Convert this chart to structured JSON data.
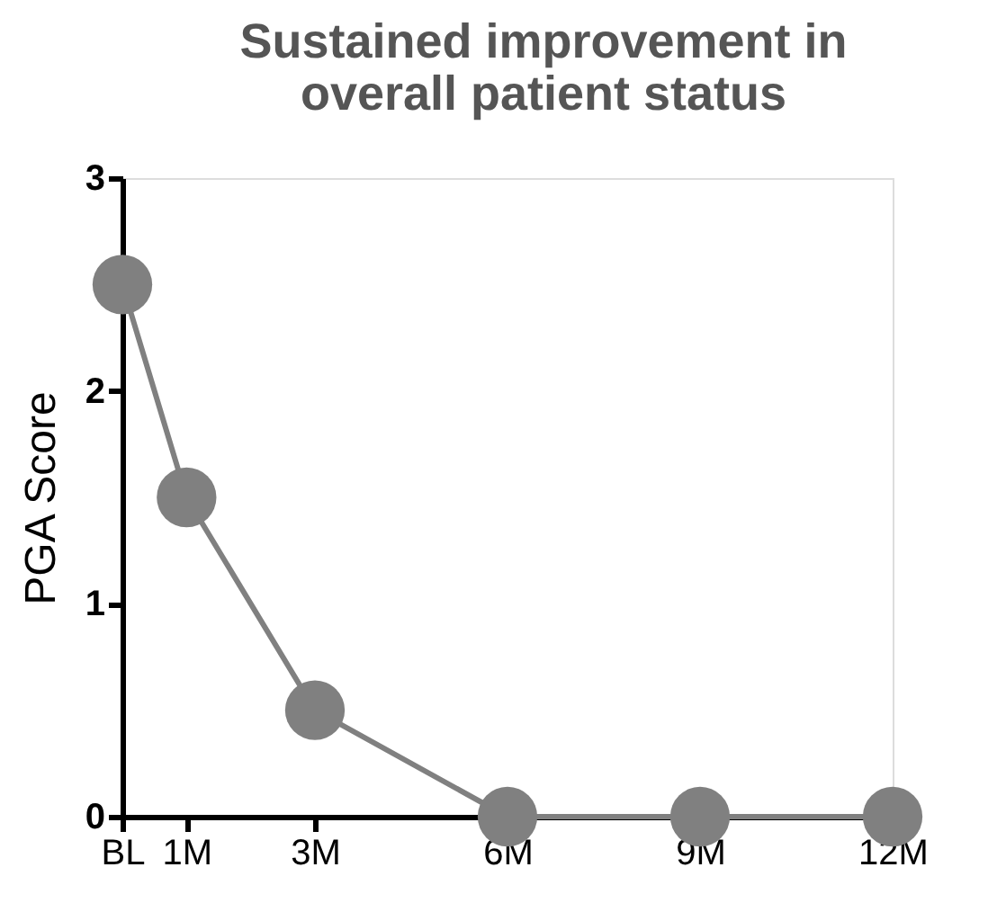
{
  "chart_data": {
    "type": "line",
    "title": "Sustained improvement in\noverall patient status",
    "ylabel": "PGA Score",
    "x": [
      0,
      1,
      3,
      6,
      9,
      12
    ],
    "series": [
      {
        "color": "#808080",
        "values": [
          2.5,
          1.5,
          0.5,
          0,
          0,
          0
        ]
      }
    ],
    "xlim": [
      0,
      12
    ],
    "xticks": [
      {
        "value": 0,
        "label": "BL"
      },
      {
        "value": 1,
        "label": "1M"
      },
      {
        "value": 3,
        "label": "3M"
      },
      {
        "value": 6,
        "label": "6M"
      },
      {
        "value": 9,
        "label": "9M"
      },
      {
        "value": 12,
        "label": "12M"
      }
    ],
    "ylim": [
      0,
      3
    ],
    "yticks": [
      0,
      1,
      2,
      3
    ],
    "marker": "circle",
    "line_style": "solid",
    "grid": false
  }
}
